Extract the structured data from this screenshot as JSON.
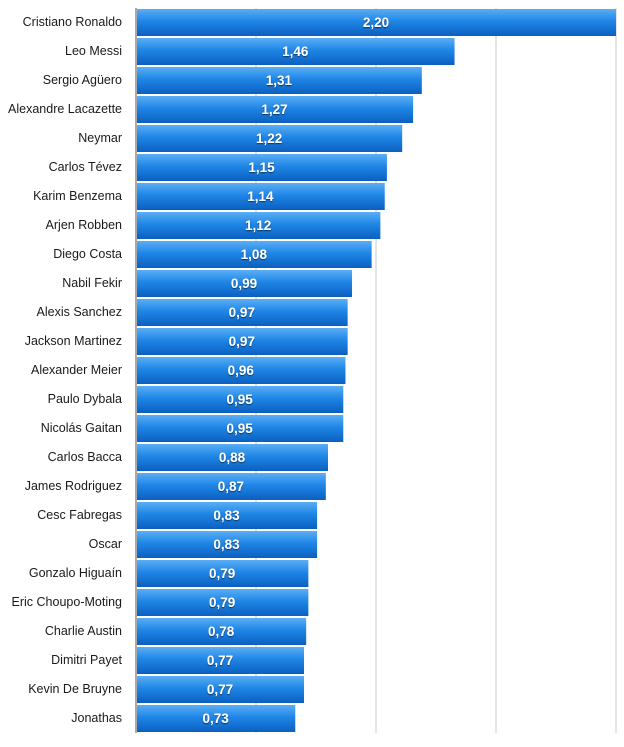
{
  "chart_data": {
    "type": "bar",
    "orientation": "horizontal",
    "title": "",
    "xlabel": "",
    "ylabel": "",
    "categories": [
      "Cristiano Ronaldo",
      "Leo Messi",
      "Sergio Agüero",
      "Alexandre Lacazette",
      "Neymar",
      "Carlos Tévez",
      "Karim Benzema",
      "Arjen Robben",
      "Diego Costa",
      "Nabil Fekir",
      "Alexis Sanchez",
      "Jackson Martinez",
      "Alexander Meier",
      "Paulo Dybala",
      "Nicolás Gaitan",
      "Carlos Bacca",
      "James Rodriguez",
      "Cesc Fabregas",
      "Oscar",
      "Gonzalo Higuaín",
      "Eric Choupo-Moting",
      "Charlie Austin",
      "Dimitri Payet",
      "Kevin De Bruyne",
      "Jonathas"
    ],
    "values": [
      2.2,
      1.46,
      1.31,
      1.27,
      1.22,
      1.15,
      1.14,
      1.12,
      1.08,
      0.99,
      0.97,
      0.97,
      0.96,
      0.95,
      0.95,
      0.88,
      0.87,
      0.83,
      0.83,
      0.79,
      0.79,
      0.78,
      0.77,
      0.77,
      0.73
    ],
    "value_labels": [
      "2,20",
      "1,46",
      "1,31",
      "1,27",
      "1,22",
      "1,15",
      "1,14",
      "1,12",
      "1,08",
      "0,99",
      "0,97",
      "0,97",
      "0,96",
      "0,95",
      "0,95",
      "0,88",
      "0,87",
      "0,83",
      "0,83",
      "0,79",
      "0,79",
      "0,78",
      "0,77",
      "0,77",
      "0,73"
    ],
    "xlim": [
      0,
      2.2
    ],
    "x_gridlines": [
      0.55,
      1.1,
      1.65,
      2.2
    ],
    "grid": true,
    "legend": "none",
    "colors": {
      "bar_top": "#5aaef5",
      "bar_mid": "#1f86e6",
      "bar_bottom": "#0b5fc0",
      "grid": "#c8c8c8",
      "axis": "#555555",
      "label_text": "#1a1a1a",
      "value_text": "#ffffff"
    }
  }
}
